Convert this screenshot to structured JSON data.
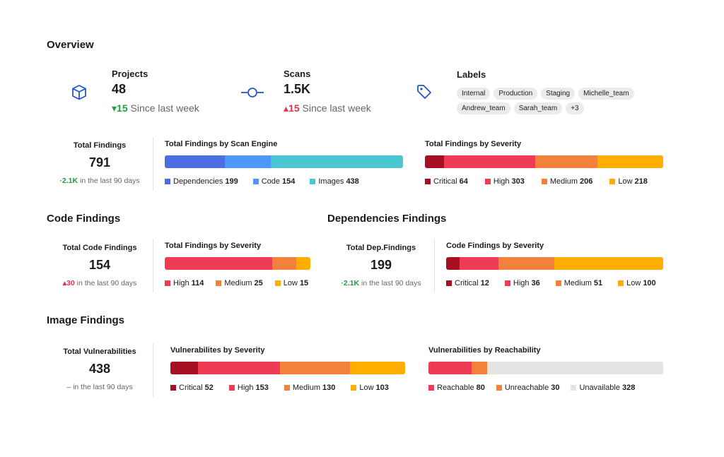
{
  "colors": {
    "critical": "#a70f22",
    "high": "#f03b54",
    "medium": "#f2813c",
    "low": "#fdae00",
    "dependencies": "#4b6ee0",
    "code": "#4e97fb",
    "images": "#4bc6d3",
    "unavailable": "#e4e4e4",
    "icon_blue": "#2457c5",
    "up_green": "#1f9e3c",
    "up_red": "#e0344b"
  },
  "overview": {
    "title": "Overview",
    "projects": {
      "icon": "cube-icon",
      "label": "Projects",
      "value": "48",
      "delta": "15",
      "delta_text": "Since last week",
      "direction": "down"
    },
    "scans": {
      "icon": "commit-icon",
      "label": "Scans",
      "value": "1.5K",
      "delta": "15",
      "delta_text": "Since last week",
      "direction": "up"
    },
    "labels": {
      "icon": "tag-icon",
      "label": "Labels",
      "tags_row1": [
        "Internal",
        "Production",
        "Staging",
        "Michelle_team"
      ],
      "tags_row2": [
        "Andrew_team",
        "Sarah_team",
        "+3"
      ]
    }
  },
  "total_findings": {
    "label": "Total Findings",
    "value": "791",
    "delta": "2.1K",
    "delta_text": "in the last 90 days",
    "by_engine": {
      "title": "Total Findings by Scan Engine",
      "segments": [
        {
          "name": "Dependencies",
          "value": 199,
          "display": "199",
          "color_key": "dependencies"
        },
        {
          "name": "Code",
          "value": 154,
          "display": "154",
          "color_key": "code"
        },
        {
          "name": "Images",
          "value": 438,
          "display": "438",
          "color_key": "images"
        }
      ]
    },
    "by_severity": {
      "title": "Total Findings by Severity",
      "segments": [
        {
          "name": "Critical",
          "value": 64,
          "display": "64",
          "color_key": "critical"
        },
        {
          "name": "High",
          "value": 303,
          "display": "303",
          "color_key": "high"
        },
        {
          "name": "Medium",
          "value": 206,
          "display": "206",
          "color_key": "medium"
        },
        {
          "name": "Low",
          "value": 218,
          "display": "218",
          "color_key": "low"
        }
      ]
    }
  },
  "code_findings": {
    "title": "Code Findings",
    "label": "Total Code Findings",
    "value": "154",
    "delta": "30",
    "delta_text": "in the last 90 days",
    "by_severity": {
      "title": "Total Findings by Severity",
      "segments": [
        {
          "name": "High",
          "value": 114,
          "display": "114",
          "color_key": "high"
        },
        {
          "name": "Medium",
          "value": 25,
          "display": "25",
          "color_key": "medium"
        },
        {
          "name": "Low",
          "value": 15,
          "display": "15",
          "color_key": "low"
        }
      ]
    }
  },
  "dependencies_findings": {
    "title": "Dependencies Findings",
    "label": "Total Dep.Findings",
    "value": "199",
    "delta": "2.1K",
    "delta_text": "in the last 90 days",
    "by_severity": {
      "title": "Code Findings by Severity",
      "segments": [
        {
          "name": "Critical",
          "value": 12,
          "display": "12",
          "color_key": "critical"
        },
        {
          "name": "High",
          "value": 36,
          "display": "36",
          "color_key": "high"
        },
        {
          "name": "Medium",
          "value": 51,
          "display": "51",
          "color_key": "medium"
        },
        {
          "name": "Low",
          "value": 100,
          "display": "100",
          "color_key": "low"
        }
      ]
    }
  },
  "image_findings": {
    "title": "Image Findings",
    "label": "Total Vulnerabilities",
    "value": "438",
    "delta": "–",
    "delta_text": "in the last 90 days",
    "by_severity": {
      "title": "Vulnerabilites by Severity",
      "segments": [
        {
          "name": "Critical",
          "value": 52,
          "display": "52",
          "color_key": "critical"
        },
        {
          "name": "High",
          "value": 153,
          "display": "153",
          "color_key": "high"
        },
        {
          "name": "Medium",
          "value": 130,
          "display": "130",
          "color_key": "medium"
        },
        {
          "name": "Low",
          "value": 103,
          "display": "103",
          "color_key": "low"
        }
      ]
    },
    "by_reachability": {
      "title": "Vulnerabilities by Reachability",
      "segments": [
        {
          "name": "Reachable",
          "value": 80,
          "display": "80",
          "color_key": "high"
        },
        {
          "name": "Unreachable",
          "value": 30,
          "display": "30",
          "color_key": "medium"
        },
        {
          "name": "Unavailable",
          "value": 328,
          "display": "328",
          "color_key": "unavailable"
        }
      ]
    }
  }
}
